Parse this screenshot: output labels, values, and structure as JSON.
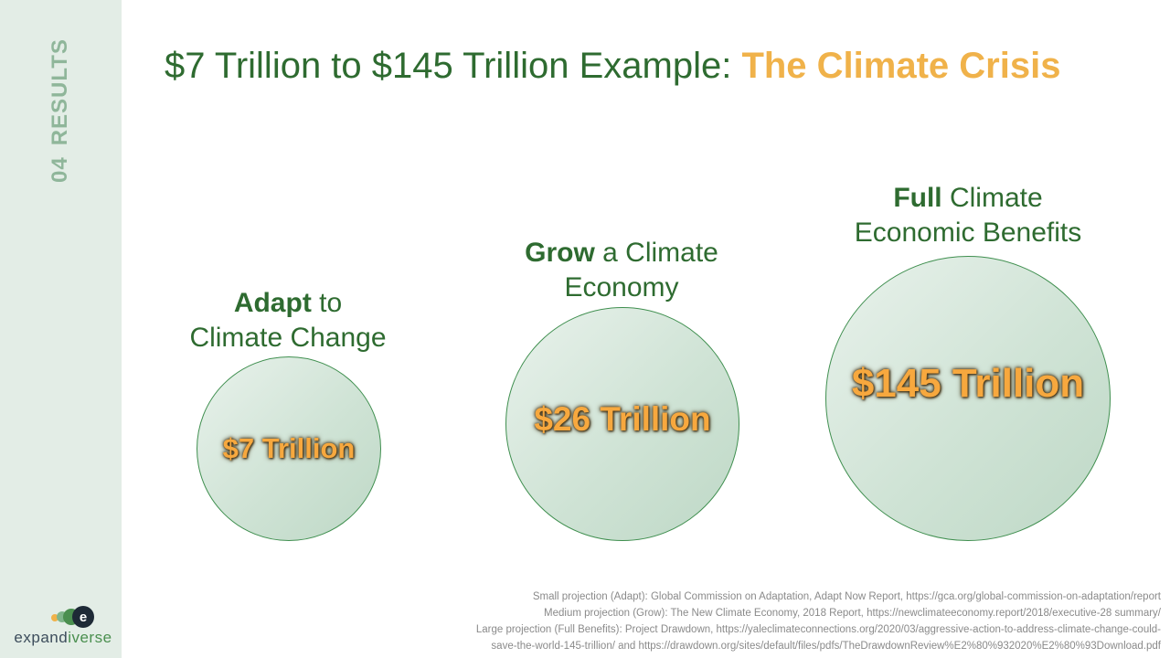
{
  "sidebar": {
    "section_number": "04",
    "section_label": "RESULTS",
    "logo_text_a": "expand",
    "logo_text_b": "iverse",
    "logo_letter": "e"
  },
  "title": {
    "main": "$7 Trillion to $145 Trillion Example: ",
    "accent": "The Climate Crisis"
  },
  "bubbles": [
    {
      "label_bold": "Adapt",
      "label_rest": " to",
      "label_line2": "Climate Change",
      "value": "$7 Trillion"
    },
    {
      "label_bold": "Grow",
      "label_rest": " a Climate",
      "label_line2": "Economy",
      "value": "$26 Trillion"
    },
    {
      "label_bold": "Full",
      "label_rest": " Climate",
      "label_line2": "Economic Benefits",
      "value": "$145 Trillion"
    }
  ],
  "sources": [
    "Small projection (Adapt): Global Commission on Adaptation, Adapt Now Report, https://gca.org/global-commission-on-adaptation/report",
    "Medium projection (Grow): The New Climate Economy, 2018 Report, https://newclimateeconomy.report/2018/executive-28 summary/",
    "Large projection (Full Benefits): Project Drawdown, https://yaleclimateconnections.org/2020/03/aggressive-action-to-address-climate-change-could-",
    "save-the-world-145-trillion/ and https://drawdown.org/sites/default/files/pdfs/TheDrawdownReview%E2%80%932020%E2%80%93Download.pdf"
  ],
  "colors": {
    "title_green": "#2e6b30",
    "accent_orange": "#f0b24a",
    "sidebar_bg": "#e3ede6"
  }
}
